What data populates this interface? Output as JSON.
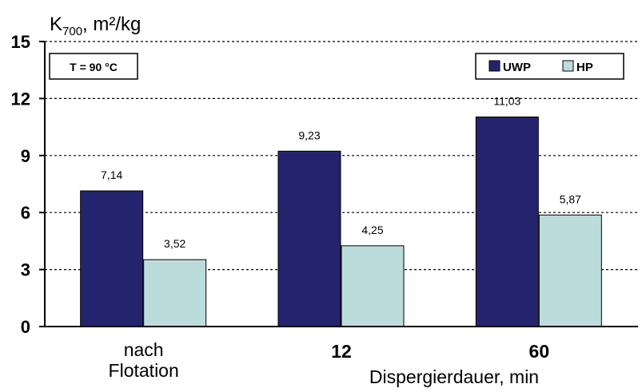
{
  "chart_data": {
    "type": "bar",
    "ylabel": "K700, m²/kg",
    "ylabel_parts": {
      "main": "K",
      "sub": "700",
      "rest": ", m²/kg"
    },
    "xlabel": "Dispergierdauer, min",
    "categories": [
      "nach Flotation",
      "12",
      "60"
    ],
    "category_lines": [
      [
        "nach",
        "Flotation"
      ],
      [
        "12"
      ],
      [
        "60"
      ]
    ],
    "series": [
      {
        "name": "UWP",
        "values": [
          7.14,
          9.23,
          11.03
        ],
        "labels": [
          "7,14",
          "9,23",
          "11,03"
        ]
      },
      {
        "name": "HP",
        "values": [
          3.52,
          4.25,
          5.87
        ],
        "labels": [
          "3,52",
          "4,25",
          "5,87"
        ]
      }
    ],
    "ylim": [
      0,
      15
    ],
    "yticks": [
      0,
      3,
      6,
      9,
      12,
      15
    ],
    "grid": true,
    "legend_position": "top-right",
    "annotation": "T = 90 °C",
    "colors": {
      "UWP": "#24246e",
      "HP": "#bcdcdc",
      "axis": "#000000",
      "grid": "#000000"
    }
  }
}
